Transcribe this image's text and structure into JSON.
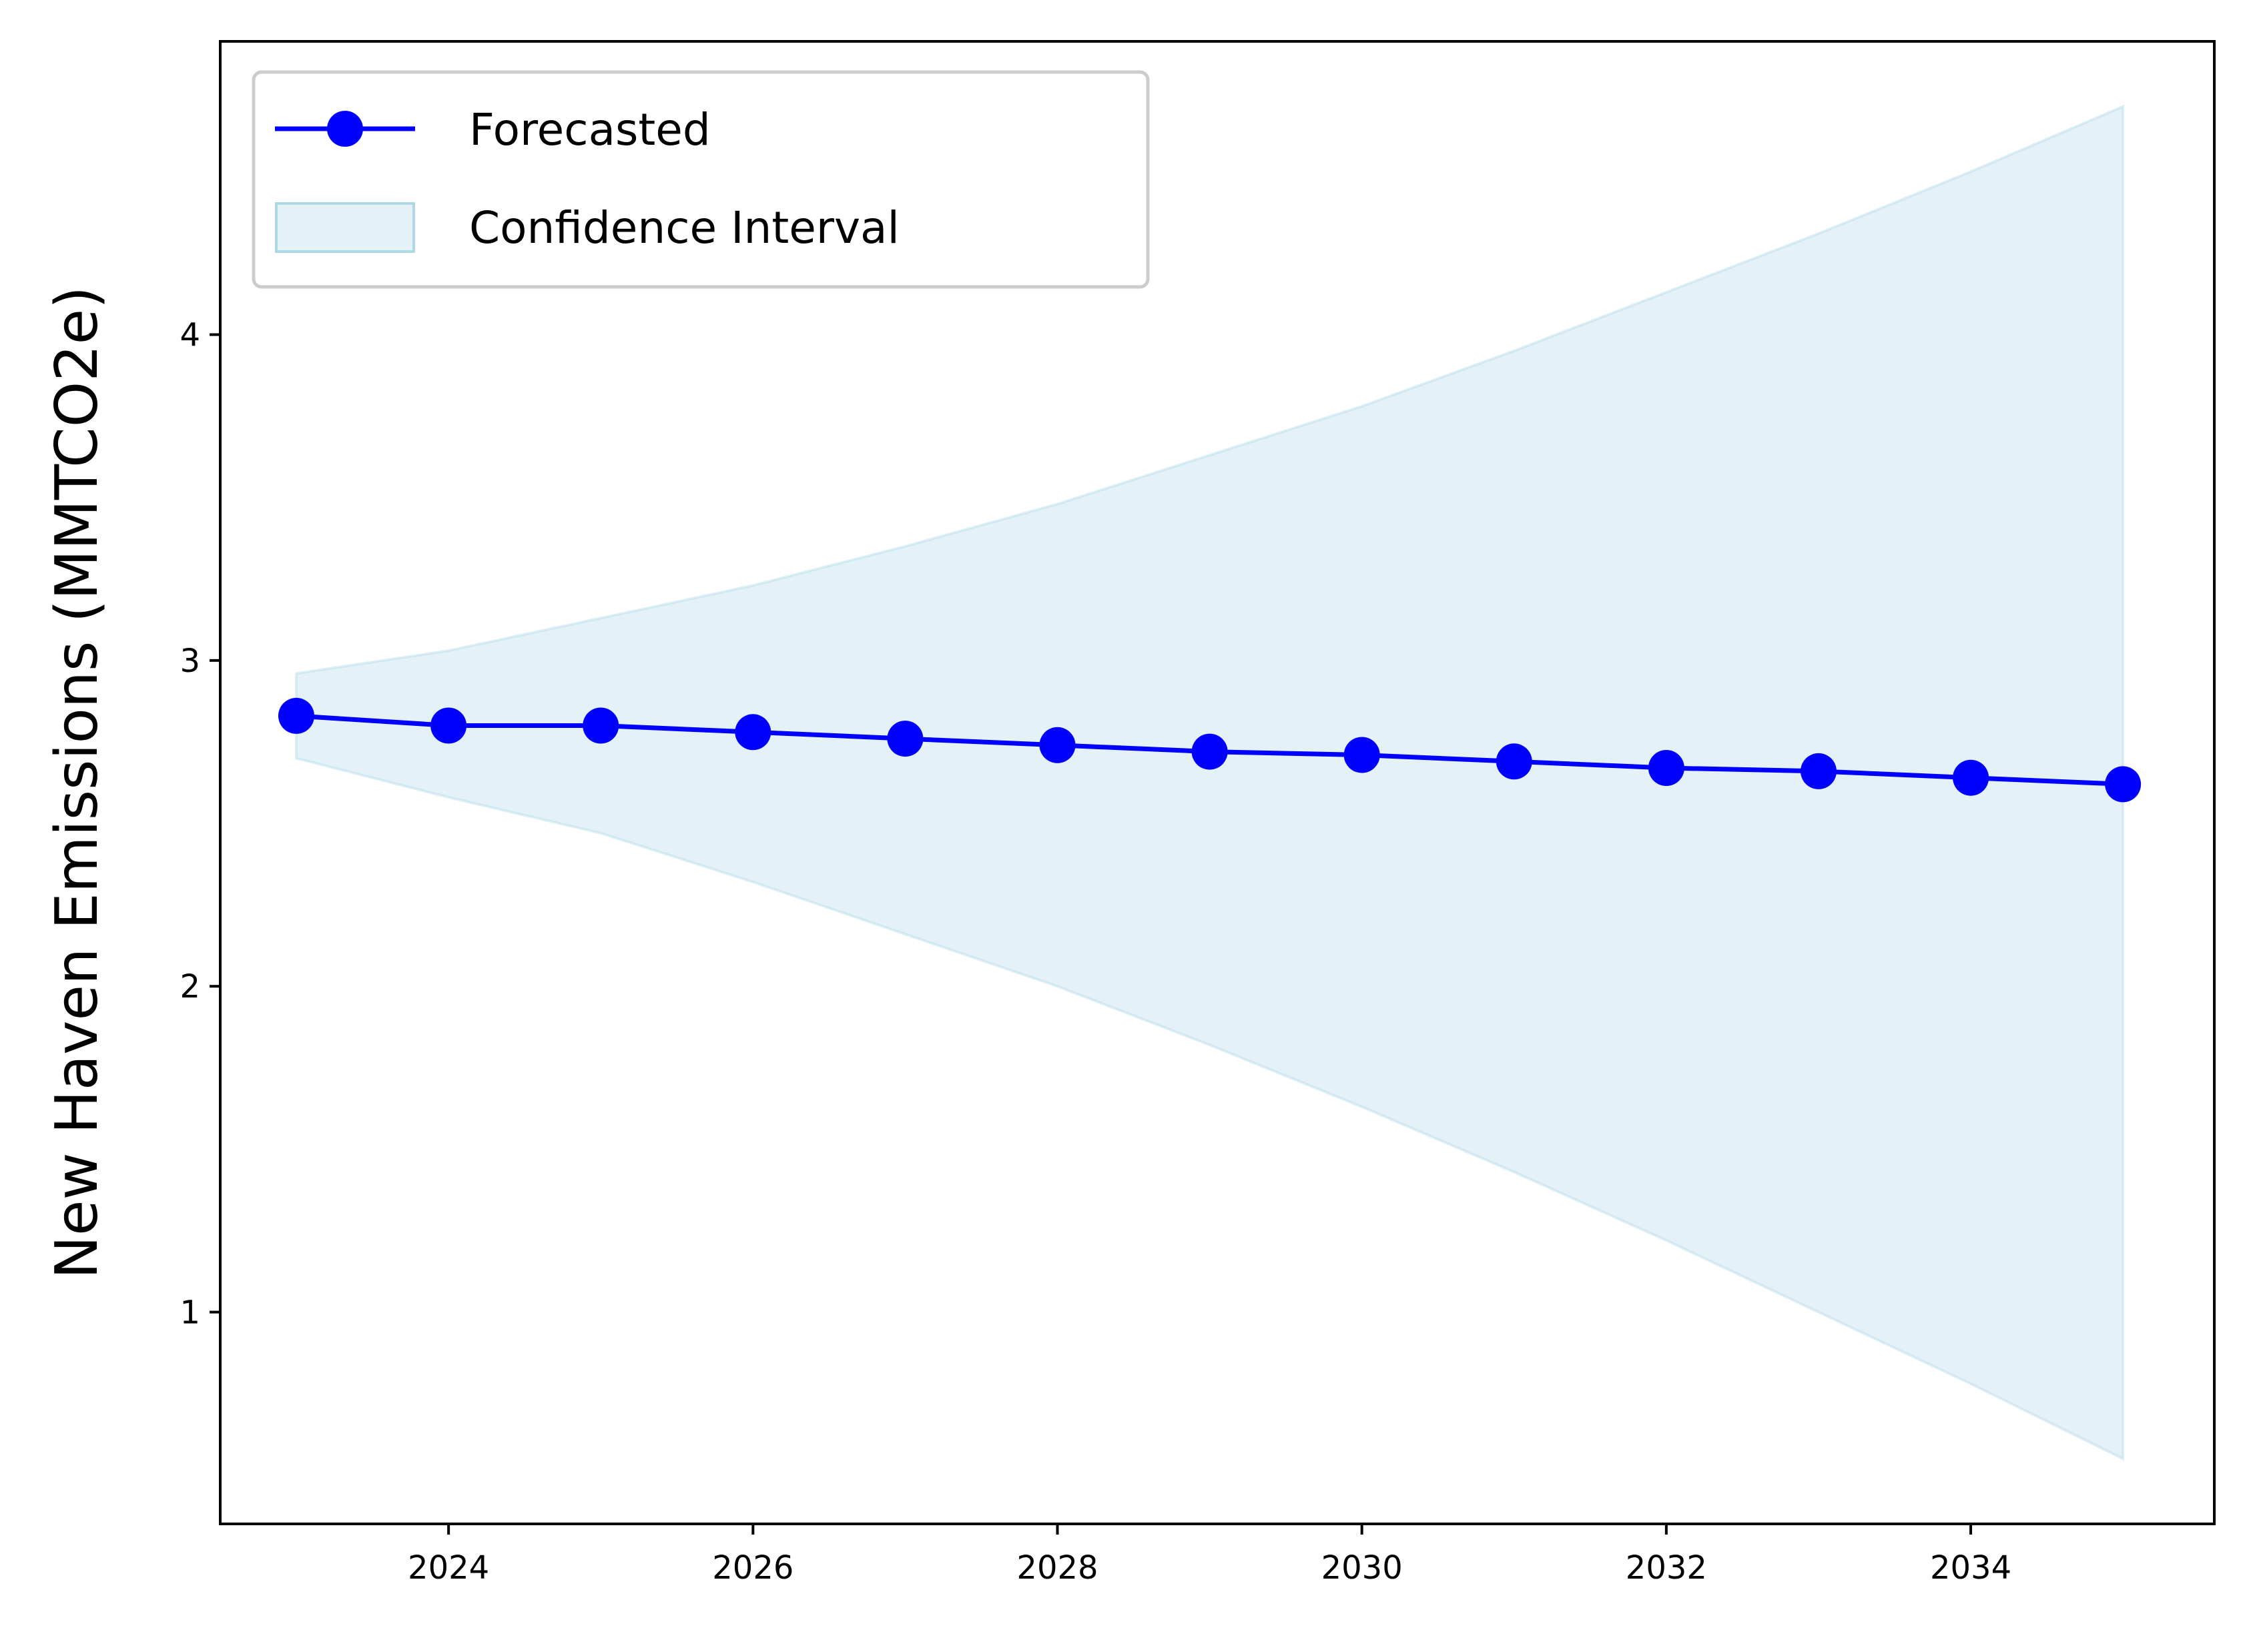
{
  "chart_data": {
    "type": "line",
    "title": "",
    "xlabel": "",
    "ylabel": "New Haven Emissions (MMTCO2e)",
    "x": [
      2023,
      2024,
      2025,
      2026,
      2027,
      2028,
      2029,
      2030,
      2031,
      2032,
      2033,
      2034,
      2035
    ],
    "xlim": [
      2022.5,
      2035.6
    ],
    "ylim": [
      0.35,
      4.9
    ],
    "xticks": [
      2024,
      2026,
      2028,
      2030,
      2032,
      2034
    ],
    "yticks": [
      1,
      2,
      3,
      4
    ],
    "grid": false,
    "legend_position": "upper left",
    "series": [
      {
        "name": "Forecasted",
        "type": "line",
        "marker": "circle",
        "color": "#0000ff",
        "values": [
          2.83,
          2.8,
          2.8,
          2.78,
          2.76,
          2.74,
          2.72,
          2.71,
          2.69,
          2.67,
          2.66,
          2.64,
          2.62
        ]
      },
      {
        "name": "Confidence Interval",
        "type": "band",
        "color": "#add8e6",
        "lower": [
          2.7,
          2.58,
          2.47,
          2.32,
          2.16,
          2.0,
          1.82,
          1.63,
          1.43,
          1.22,
          1.0,
          0.78,
          0.55
        ],
        "upper": [
          2.96,
          3.03,
          3.13,
          3.23,
          3.35,
          3.48,
          3.63,
          3.78,
          3.95,
          4.13,
          4.31,
          4.5,
          4.7
        ]
      }
    ]
  }
}
